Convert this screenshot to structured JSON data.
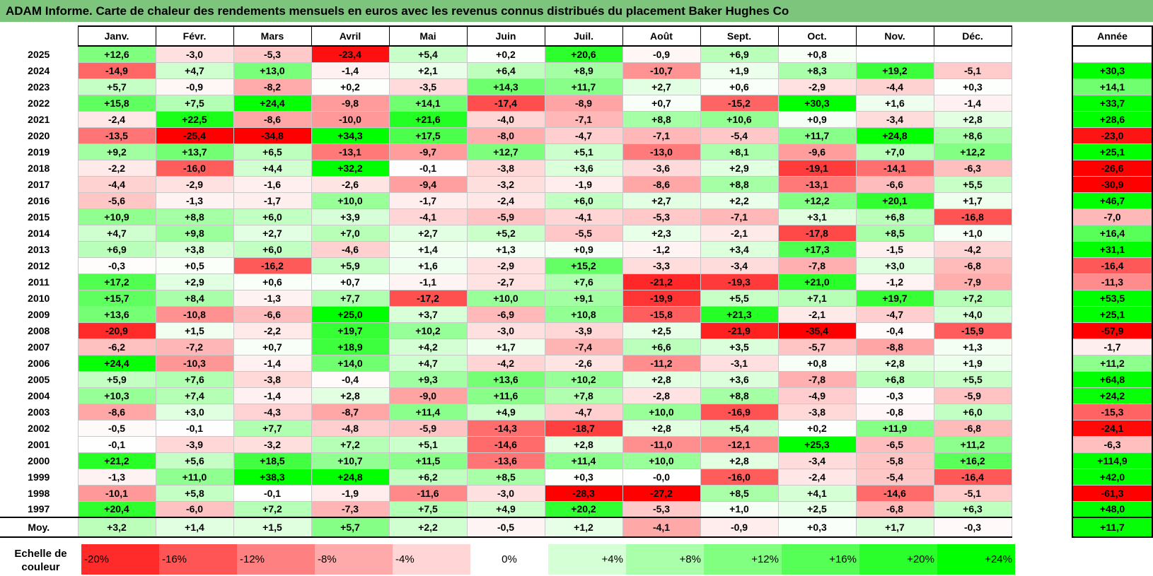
{
  "title": "ADAM Informe. Carte de chaleur des rendements mensuels en euros avec les revenus connus distribués du placement Baker Hughes Co",
  "chart_data": {
    "type": "heatmap",
    "columns": [
      "Janv.",
      "Févr.",
      "Mars",
      "Avril",
      "Mai",
      "Juin",
      "Juil.",
      "Août",
      "Sept.",
      "Oct.",
      "Nov.",
      "Déc."
    ],
    "year_column_label": "Année",
    "rows": [
      {
        "year": "2025",
        "values": [
          "+12,6",
          "-3,0",
          "-5,3",
          "-23,4",
          "+5,4",
          "+0,2",
          "+20,6",
          "-0,9",
          "+6,9",
          "+0,8",
          "",
          ""
        ],
        "annual": ""
      },
      {
        "year": "2024",
        "values": [
          "-14,9",
          "+4,7",
          "+13,0",
          "-1,4",
          "+2,1",
          "+6,4",
          "+8,9",
          "-10,7",
          "+1,9",
          "+8,3",
          "+19,2",
          "-5,1"
        ],
        "annual": "+30,3"
      },
      {
        "year": "2023",
        "values": [
          "+5,7",
          "-0,9",
          "-8,2",
          "+0,2",
          "-3,5",
          "+14,3",
          "+11,7",
          "+2,7",
          "+0,6",
          "-2,9",
          "-4,4",
          "+0,3"
        ],
        "annual": "+14,1"
      },
      {
        "year": "2022",
        "values": [
          "+15,8",
          "+7,5",
          "+24,4",
          "-9,8",
          "+14,1",
          "-17,4",
          "-8,9",
          "+0,7",
          "-15,2",
          "+30,3",
          "+1,6",
          "-1,4"
        ],
        "annual": "+33,7"
      },
      {
        "year": "2021",
        "values": [
          "-2,4",
          "+22,5",
          "-8,6",
          "-10,0",
          "+21,6",
          "-4,0",
          "-7,1",
          "+8,8",
          "+10,6",
          "+0,9",
          "-3,4",
          "+2,8"
        ],
        "annual": "+28,6"
      },
      {
        "year": "2020",
        "values": [
          "-13,5",
          "-25,4",
          "-34,8",
          "+34,3",
          "+17,5",
          "-8,0",
          "-4,7",
          "-7,1",
          "-5,4",
          "+11,7",
          "+24,8",
          "+8,6"
        ],
        "annual": "-23,0"
      },
      {
        "year": "2019",
        "values": [
          "+9,2",
          "+13,7",
          "+6,5",
          "-13,1",
          "-9,7",
          "+12,7",
          "+5,1",
          "-13,0",
          "+8,1",
          "-9,6",
          "+7,0",
          "+12,2"
        ],
        "annual": "+25,1"
      },
      {
        "year": "2018",
        "values": [
          "-2,2",
          "-16,0",
          "+4,4",
          "+32,2",
          "-0,1",
          "-3,8",
          "+3,6",
          "-3,6",
          "+2,9",
          "-19,1",
          "-14,1",
          "-6,3"
        ],
        "annual": "-26,6"
      },
      {
        "year": "2017",
        "values": [
          "-4,4",
          "-2,9",
          "-1,6",
          "-2,6",
          "-9,4",
          "-3,2",
          "-1,9",
          "-8,6",
          "+8,8",
          "-13,1",
          "-6,6",
          "+5,5"
        ],
        "annual": "-30,9"
      },
      {
        "year": "2016",
        "values": [
          "-5,6",
          "-1,3",
          "-1,7",
          "+10,0",
          "-1,7",
          "-2,4",
          "+6,0",
          "+2,7",
          "+2,2",
          "+12,2",
          "+20,1",
          "+1,7"
        ],
        "annual": "+46,7"
      },
      {
        "year": "2015",
        "values": [
          "+10,9",
          "+8,8",
          "+6,0",
          "+3,9",
          "-4,1",
          "-5,9",
          "-4,1",
          "-5,3",
          "-7,1",
          "+3,1",
          "+6,8",
          "-16,8"
        ],
        "annual": "-7,0"
      },
      {
        "year": "2014",
        "values": [
          "+4,7",
          "+9,8",
          "+2,7",
          "+7,0",
          "+2,7",
          "+5,2",
          "-5,5",
          "+2,3",
          "-2,1",
          "-17,8",
          "+8,5",
          "+1,0"
        ],
        "annual": "+16,4"
      },
      {
        "year": "2013",
        "values": [
          "+6,9",
          "+3,8",
          "+6,0",
          "-4,6",
          "+1,4",
          "+1,3",
          "+0,9",
          "-1,2",
          "+3,4",
          "+17,3",
          "-1,5",
          "-4,2"
        ],
        "annual": "+31,1"
      },
      {
        "year": "2012",
        "values": [
          "-0,3",
          "+0,5",
          "-16,2",
          "+5,9",
          "+1,6",
          "-2,9",
          "+15,2",
          "-3,3",
          "-3,4",
          "-7,8",
          "+3,0",
          "-6,8"
        ],
        "annual": "-16,4"
      },
      {
        "year": "2011",
        "values": [
          "+17,2",
          "+2,9",
          "+0,6",
          "+0,7",
          "-1,1",
          "-2,7",
          "+7,6",
          "-21,2",
          "-19,3",
          "+21,0",
          "-1,2",
          "-7,9"
        ],
        "annual": "-11,3"
      },
      {
        "year": "2010",
        "values": [
          "+15,7",
          "+8,4",
          "-1,3",
          "+7,7",
          "-17,2",
          "+10,0",
          "+9,1",
          "-19,9",
          "+5,5",
          "+7,1",
          "+19,7",
          "+7,2"
        ],
        "annual": "+53,5"
      },
      {
        "year": "2009",
        "values": [
          "+13,6",
          "-10,8",
          "-6,6",
          "+25,0",
          "+3,7",
          "-6,9",
          "+10,8",
          "-15,8",
          "+21,3",
          "-2,1",
          "-4,7",
          "+4,0"
        ],
        "annual": "+25,1"
      },
      {
        "year": "2008",
        "values": [
          "-20,9",
          "+1,5",
          "-2,2",
          "+19,7",
          "+10,2",
          "-3,0",
          "-3,9",
          "+2,5",
          "-21,9",
          "-35,4",
          "-0,4",
          "-15,9"
        ],
        "annual": "-57,9"
      },
      {
        "year": "2007",
        "values": [
          "-6,2",
          "-7,2",
          "+0,7",
          "+18,9",
          "+4,2",
          "+1,7",
          "-7,4",
          "+6,6",
          "+3,5",
          "-5,7",
          "-8,8",
          "+1,3"
        ],
        "annual": "-1,7"
      },
      {
        "year": "2006",
        "values": [
          "+24,4",
          "-10,3",
          "-1,4",
          "+14,0",
          "+4,7",
          "-4,2",
          "-2,6",
          "-11,2",
          "-3,1",
          "+0,8",
          "+2,8",
          "+1,9"
        ],
        "annual": "+11,2"
      },
      {
        "year": "2005",
        "values": [
          "+5,9",
          "+7,6",
          "-3,8",
          "-0,4",
          "+9,3",
          "+13,6",
          "+10,2",
          "+2,8",
          "+3,6",
          "-7,8",
          "+6,8",
          "+5,5"
        ],
        "annual": "+64,8"
      },
      {
        "year": "2004",
        "values": [
          "+10,3",
          "+7,4",
          "-1,4",
          "+2,8",
          "-9,0",
          "+11,6",
          "+7,8",
          "-2,8",
          "+8,8",
          "-4,9",
          "-0,3",
          "-5,9"
        ],
        "annual": "+24,2"
      },
      {
        "year": "2003",
        "values": [
          "-8,6",
          "+3,0",
          "-4,3",
          "-8,7",
          "+11,4",
          "+4,9",
          "-4,7",
          "+10,0",
          "-16,9",
          "-3,8",
          "-0,8",
          "+6,0"
        ],
        "annual": "-15,3"
      },
      {
        "year": "2002",
        "values": [
          "-0,5",
          "-0,1",
          "+7,7",
          "-4,8",
          "-5,9",
          "-14,3",
          "-18,7",
          "+2,8",
          "+5,4",
          "+0,2",
          "+11,9",
          "-6,8"
        ],
        "annual": "-24,1"
      },
      {
        "year": "2001",
        "values": [
          "-0,1",
          "-3,9",
          "-3,2",
          "+7,2",
          "+5,1",
          "-14,6",
          "+2,8",
          "-11,0",
          "-12,1",
          "+25,3",
          "-6,5",
          "+11,2"
        ],
        "annual": "-6,3"
      },
      {
        "year": "2000",
        "values": [
          "+21,2",
          "+5,6",
          "+18,5",
          "+10,7",
          "+11,5",
          "-13,6",
          "+11,4",
          "+10,0",
          "+2,8",
          "-3,4",
          "-5,8",
          "+16,2"
        ],
        "annual": "+114,9"
      },
      {
        "year": "1999",
        "values": [
          "-1,3",
          "+11,0",
          "+38,3",
          "+24,8",
          "+6,2",
          "+8,5",
          "+0,3",
          "-0,0",
          "-16,0",
          "-2,4",
          "-5,4",
          "-16,4"
        ],
        "annual": "+42,0"
      },
      {
        "year": "1998",
        "values": [
          "-10,1",
          "+5,8",
          "-0,1",
          "-1,9",
          "-11,6",
          "-3,0",
          "-28,3",
          "-27,2",
          "+8,5",
          "+4,1",
          "-14,6",
          "-5,1"
        ],
        "annual": "-61,3"
      },
      {
        "year": "1997",
        "values": [
          "+20,4",
          "-6,0",
          "+7,2",
          "-7,3",
          "+7,5",
          "+4,9",
          "+20,2",
          "-5,3",
          "+1,0",
          "+2,5",
          "-6,8",
          "+6,3"
        ],
        "annual": "+48,0"
      }
    ],
    "average": {
      "label": "Moy.",
      "values": [
        "+3,2",
        "+1,4",
        "+1,5",
        "+5,7",
        "+2,2",
        "-0,5",
        "+1,2",
        "-4,1",
        "-0,9",
        "+0,3",
        "+1,7",
        "-0,3"
      ],
      "annual": "+11,7"
    },
    "scale": {
      "label_line1": "Echelle de",
      "label_line2": "couleur",
      "steps": [
        "-20%",
        "-16%",
        "-12%",
        "-8%",
        "-4%",
        "0%",
        "+4%",
        "+8%",
        "+12%",
        "+16%",
        "+20%",
        "+24%"
      ],
      "step_values": [
        -20,
        -16,
        -12,
        -8,
        -4,
        0,
        4,
        8,
        12,
        16,
        20,
        24
      ]
    },
    "colors": {
      "negative": "#ff0000",
      "positive": "#00ff00",
      "neutral": "#ffffff",
      "title_bar": "#7dc57d"
    }
  }
}
